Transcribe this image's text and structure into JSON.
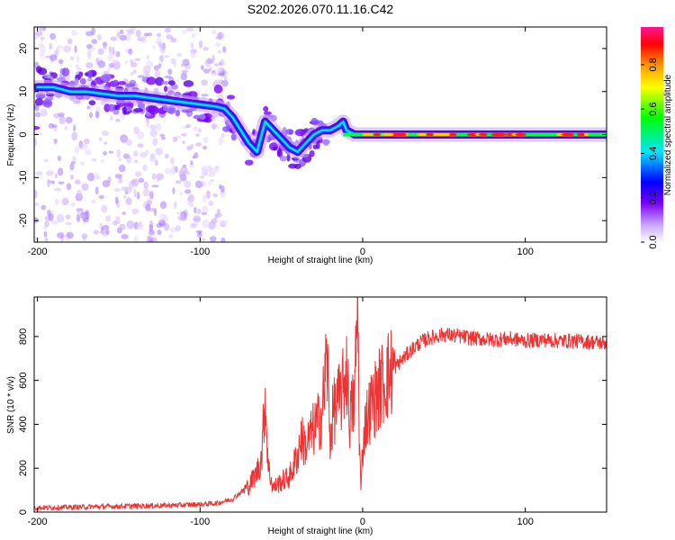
{
  "title": "S202.2026.070.11.16.C42",
  "chart_data": [
    {
      "type": "heatmap",
      "name": "spectrogram",
      "xlabel": "Height of straight line (km)",
      "ylabel": "Frequency (Hz)",
      "xlim": [
        -202,
        150
      ],
      "ylim": [
        -25,
        25
      ],
      "xticks": [
        -200,
        -100,
        0,
        100
      ],
      "yticks": [
        -20,
        -10,
        0,
        10,
        20
      ],
      "xtick_labels": [
        "-200",
        "-100",
        "0",
        "100"
      ],
      "ytick_labels": [
        "-20",
        "-10",
        "0",
        "10",
        "20"
      ],
      "ridge": {
        "x": [
          -200,
          -190,
          -180,
          -170,
          -160,
          -150,
          -140,
          -130,
          -120,
          -110,
          -100,
          -90,
          -85,
          -80,
          -75,
          -70,
          -65,
          -60,
          -55,
          -50,
          -45,
          -40,
          -35,
          -30,
          -25,
          -20,
          -15,
          -12,
          -10,
          -5,
          0,
          20,
          40,
          60,
          80,
          100,
          120,
          150
        ],
        "y": [
          11,
          11,
          10,
          10,
          9.5,
          9,
          9,
          8.5,
          8,
          7.5,
          7,
          6.5,
          6,
          4,
          1,
          -2,
          -4,
          3,
          1,
          -1,
          -3,
          -4,
          -2,
          0,
          1,
          1,
          2,
          3,
          1,
          0,
          0,
          0,
          0,
          0,
          0,
          0,
          0,
          0
        ]
      },
      "colorbar": {
        "label": "Normalized spectral amplitude",
        "range": [
          0,
          0.97
        ],
        "ticks": [
          0,
          0.2,
          0.4,
          0.6,
          0.8
        ],
        "tick_labels": [
          "0.0",
          "0.2",
          "0.4",
          "0.6",
          "0.8"
        ],
        "colors": [
          "#ffffff",
          "#c8a6ff",
          "#7a00ff",
          "#0000ff",
          "#00e5ff",
          "#00ff00",
          "#ffff00",
          "#ff9900",
          "#ff0000",
          "#ff1493"
        ]
      }
    },
    {
      "type": "line",
      "name": "snr",
      "xlabel": "Height of straight line (km)",
      "ylabel": "SNR (10 * v/v)",
      "xlim": [
        -202,
        150
      ],
      "ylim": [
        0,
        980
      ],
      "xticks": [
        -200,
        -100,
        0,
        100
      ],
      "yticks": [
        0,
        200,
        400,
        600,
        800
      ],
      "xtick_labels": [
        "-200",
        "-100",
        "0",
        "100"
      ],
      "ytick_labels": [
        "0",
        "200",
        "400",
        "600",
        "800"
      ],
      "color": "#ee3333",
      "series": [
        {
          "name": "SNR",
          "x": [
            -202,
            -180,
            -160,
            -140,
            -120,
            -100,
            -90,
            -80,
            -75,
            -70,
            -65,
            -62,
            -60,
            -58,
            -55,
            -50,
            -45,
            -40,
            -38,
            -35,
            -30,
            -25,
            -22,
            -20,
            -18,
            -15,
            -12,
            -10,
            -8,
            -5,
            -3,
            -2,
            -1,
            0,
            2,
            5,
            10,
            15,
            20,
            25,
            30,
            35,
            40,
            45,
            50,
            60,
            70,
            80,
            90,
            100,
            110,
            120,
            130,
            140,
            150
          ],
          "y": [
            20,
            22,
            25,
            28,
            30,
            35,
            40,
            60,
            90,
            120,
            180,
            260,
            540,
            200,
            110,
            140,
            160,
            260,
            340,
            300,
            380,
            440,
            720,
            330,
            460,
            500,
            560,
            680,
            420,
            520,
            980,
            300,
            90,
            300,
            420,
            480,
            560,
            620,
            660,
            700,
            740,
            770,
            790,
            800,
            810,
            800,
            790,
            785,
            790,
            780,
            785,
            780,
            780,
            775,
            770
          ]
        }
      ]
    }
  ]
}
